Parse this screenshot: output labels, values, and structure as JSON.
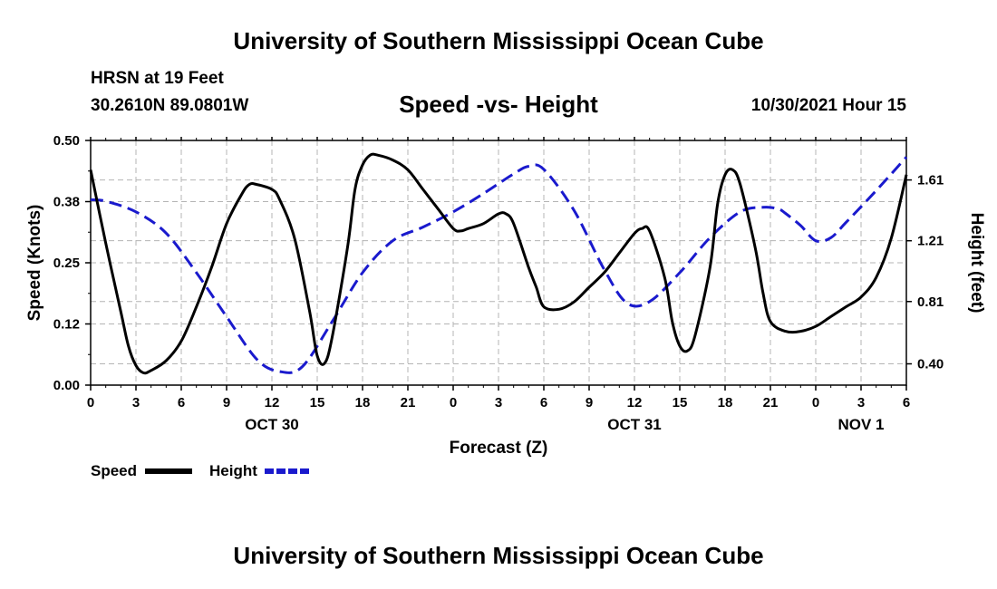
{
  "header": {
    "title": "University of Southern Mississippi Ocean Cube",
    "station": "HRSN at 19 Feet",
    "coords": "30.2610N  89.0801W",
    "chart_title": "Speed -vs- Height",
    "run_time": "10/30/2021 Hour 15"
  },
  "footer": {
    "title": "University of Southern Mississippi Ocean Cube"
  },
  "legend": {
    "speed_label": "Speed",
    "height_label": "Height"
  },
  "colors": {
    "speed": "#000000",
    "height": "#1a1acd",
    "grid": "#b4b4b4"
  },
  "chart_data": {
    "type": "line",
    "title": "Speed -vs- Height",
    "xlabel": "Forecast (Z)",
    "ylabel": "Speed (Knots)",
    "y2label": "Height (feet)",
    "x_range": [
      0,
      54
    ],
    "ylim": [
      0,
      0.5
    ],
    "y2lim": [
      0.26,
      1.87
    ],
    "x_ticks": [
      {
        "x": 0,
        "label": "0"
      },
      {
        "x": 3,
        "label": "3"
      },
      {
        "x": 6,
        "label": "6"
      },
      {
        "x": 9,
        "label": "9"
      },
      {
        "x": 12,
        "label": "12"
      },
      {
        "x": 15,
        "label": "15"
      },
      {
        "x": 18,
        "label": "18"
      },
      {
        "x": 21,
        "label": "21"
      },
      {
        "x": 24,
        "label": "0"
      },
      {
        "x": 27,
        "label": "3"
      },
      {
        "x": 30,
        "label": "6"
      },
      {
        "x": 33,
        "label": "9"
      },
      {
        "x": 36,
        "label": "12"
      },
      {
        "x": 39,
        "label": "15"
      },
      {
        "x": 42,
        "label": "18"
      },
      {
        "x": 45,
        "label": "21"
      },
      {
        "x": 48,
        "label": "0"
      },
      {
        "x": 51,
        "label": "3"
      },
      {
        "x": 54,
        "label": "6"
      }
    ],
    "date_labels": [
      {
        "x": 12,
        "label": "OCT 30"
      },
      {
        "x": 36,
        "label": "OCT 31"
      },
      {
        "x": 51,
        "label": "NOV 1"
      }
    ],
    "y_ticks": [
      {
        "v": 0,
        "label": "0.00"
      },
      {
        "v": 0.125,
        "label": "0.12"
      },
      {
        "v": 0.25,
        "label": "0.25"
      },
      {
        "v": 0.375,
        "label": "0.38"
      },
      {
        "v": 0.5,
        "label": "0.50"
      }
    ],
    "y2_ticks": [
      {
        "v": 0.4,
        "label": "0.40"
      },
      {
        "v": 0.81,
        "label": "0.81"
      },
      {
        "v": 1.21,
        "label": "1.21"
      },
      {
        "v": 1.61,
        "label": "1.61"
      }
    ],
    "series": [
      {
        "name": "Speed",
        "axis": "left",
        "style": "solid",
        "x": [
          0,
          1,
          2,
          2.5,
          3,
          3.5,
          4,
          5,
          6,
          7,
          8,
          9,
          10,
          10.5,
          11,
          12,
          12.5,
          13.5,
          14.5,
          15,
          15.5,
          16,
          17,
          17.5,
          18,
          18.5,
          19,
          20,
          21,
          22,
          23,
          24,
          24.5,
          25,
          26,
          27,
          27.5,
          28,
          29,
          29.5,
          30,
          31,
          32,
          33,
          34,
          35,
          36,
          36.5,
          37,
          38,
          38.5,
          39,
          39.5,
          40,
          41,
          41.5,
          42,
          42.5,
          43,
          44,
          44.5,
          45,
          46,
          47,
          48,
          49,
          50,
          51,
          52,
          53,
          54
        ],
        "values": [
          0.44,
          0.29,
          0.15,
          0.08,
          0.04,
          0.025,
          0.03,
          0.05,
          0.09,
          0.16,
          0.24,
          0.33,
          0.39,
          0.41,
          0.41,
          0.4,
          0.38,
          0.3,
          0.15,
          0.06,
          0.045,
          0.1,
          0.28,
          0.4,
          0.45,
          0.47,
          0.47,
          0.46,
          0.44,
          0.4,
          0.36,
          0.32,
          0.315,
          0.32,
          0.33,
          0.35,
          0.35,
          0.33,
          0.24,
          0.2,
          0.16,
          0.155,
          0.17,
          0.2,
          0.23,
          0.27,
          0.31,
          0.32,
          0.315,
          0.22,
          0.13,
          0.08,
          0.07,
          0.1,
          0.24,
          0.37,
          0.43,
          0.44,
          0.41,
          0.28,
          0.19,
          0.13,
          0.11,
          0.11,
          0.12,
          0.14,
          0.16,
          0.18,
          0.22,
          0.3,
          0.43
        ]
      },
      {
        "name": "Height",
        "axis": "right",
        "style": "dashed",
        "x": [
          0,
          1,
          3,
          5,
          7,
          9,
          11,
          12.5,
          14,
          16,
          18,
          20,
          22,
          24,
          26,
          28,
          29,
          30,
          32,
          34,
          35.5,
          37,
          39,
          41,
          43,
          44.5,
          45.5,
          46,
          47,
          48,
          49,
          50,
          52,
          54
        ],
        "values": [
          1.48,
          1.47,
          1.4,
          1.26,
          1.0,
          0.71,
          0.43,
          0.35,
          0.38,
          0.68,
          1.0,
          1.21,
          1.3,
          1.4,
          1.52,
          1.65,
          1.7,
          1.68,
          1.41,
          1.02,
          0.8,
          0.81,
          1.0,
          1.23,
          1.4,
          1.43,
          1.42,
          1.39,
          1.31,
          1.21,
          1.23,
          1.33,
          1.54,
          1.76
        ]
      }
    ]
  }
}
